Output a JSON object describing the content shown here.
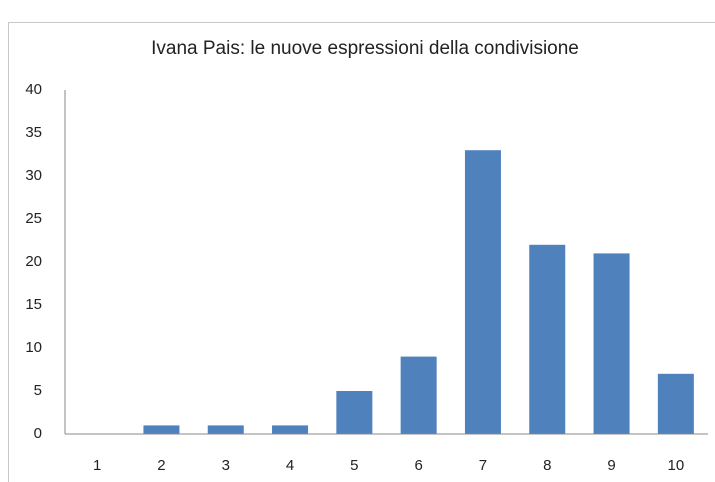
{
  "chart_data": {
    "type": "bar",
    "title": "Ivana Pais: le nuove espressioni della condivisione",
    "categories": [
      "1",
      "2",
      "3",
      "4",
      "5",
      "6",
      "7",
      "8",
      "9",
      "10"
    ],
    "values": [
      0,
      1,
      1,
      1,
      5,
      9,
      33,
      22,
      21,
      7
    ],
    "color": "#4f81bd",
    "ylim": [
      0,
      40
    ],
    "yticks": [
      0,
      5,
      10,
      15,
      20,
      25,
      30,
      35,
      40
    ],
    "grid": false
  }
}
